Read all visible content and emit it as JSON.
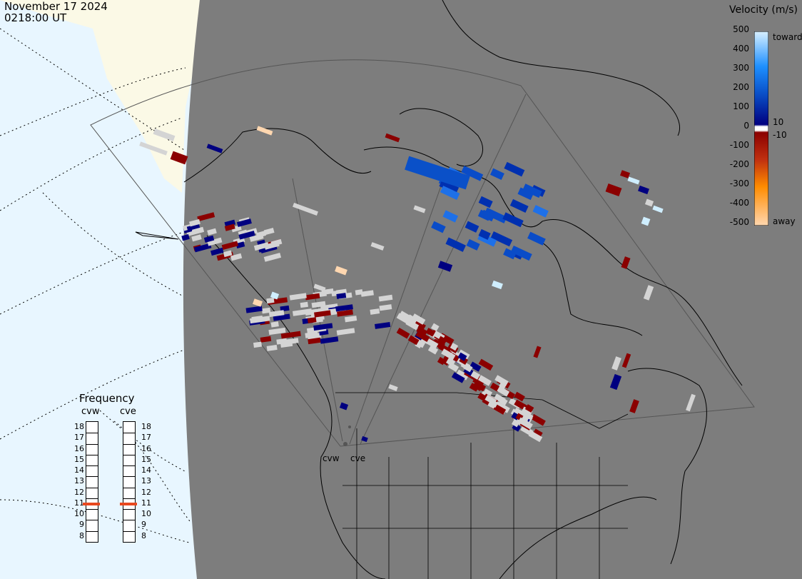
{
  "header": {
    "date": "November 17 2024",
    "time": "0218:00 UT"
  },
  "legend": {
    "title": "Velocity (m/s)",
    "ticks": [
      "500",
      "400",
      "300",
      "200",
      "100",
      "0",
      "-100",
      "-200",
      "-300",
      "-400",
      "-500"
    ],
    "small_ticks": [
      "10",
      "-10"
    ],
    "toward_label": "toward",
    "away_label": "away",
    "colors": {
      "toward_high": "#cfeeff",
      "toward_mid": "#1e90ff",
      "toward_low": "#000080",
      "away_low": "#8b0000",
      "away_mid": "#ff8c00",
      "away_high": "#ffd7b0",
      "ground_scatter": "#d4d4d4"
    }
  },
  "frequency": {
    "title": "Frequency",
    "radars": [
      "cvw",
      "cve"
    ],
    "scale": [
      "18",
      "17",
      "16",
      "15",
      "14",
      "13",
      "12",
      "11",
      "10",
      "9",
      "8"
    ],
    "values_mhz": [
      10.9,
      10.9
    ],
    "marker_color": "#e8481e"
  },
  "map": {
    "sites": [
      "cvw",
      "cve"
    ],
    "background_land": "#7d7d7d",
    "ocean": "#e8f6ff",
    "arctic_land": "#fbf9e6"
  }
}
